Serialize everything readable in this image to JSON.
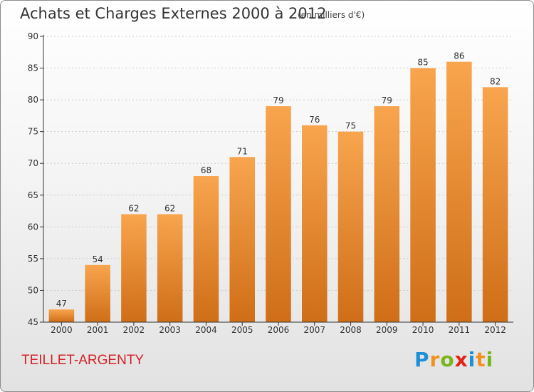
{
  "title": "Achats et Charges Externes 2000 à 2012",
  "subtitle": "(en milliers d'€)",
  "commune": "TEILLET-ARGENTY",
  "logo": {
    "text": "Proxiti",
    "letters": [
      "P",
      "r",
      "o",
      "x",
      "i",
      "t",
      "i"
    ],
    "colors": [
      "#1e90d6",
      "#f4901e",
      "#7ab51d",
      "#e2231a",
      "#1e90d6",
      "#f4901e",
      "#7ab51d"
    ]
  },
  "colors": {
    "bar_light": "#f8a54e",
    "bar_dark": "#cf6e17",
    "axis": "#333333",
    "grid": "#cccccc"
  },
  "chart_data": {
    "type": "bar",
    "title": "Achats et Charges Externes 2000 à 2012",
    "subtitle": "(en milliers d'€)",
    "categories": [
      "2000",
      "2001",
      "2002",
      "2003",
      "2004",
      "2005",
      "2006",
      "2007",
      "2008",
      "2009",
      "2010",
      "2011",
      "2012"
    ],
    "values": [
      47,
      54,
      62,
      62,
      68,
      71,
      79,
      76,
      75,
      79,
      85,
      86,
      82
    ],
    "ylim": [
      45,
      90
    ],
    "yticks": [
      45,
      50,
      55,
      60,
      65,
      70,
      75,
      80,
      85,
      90
    ],
    "xlabel": "",
    "ylabel": "",
    "data_labels": true
  }
}
